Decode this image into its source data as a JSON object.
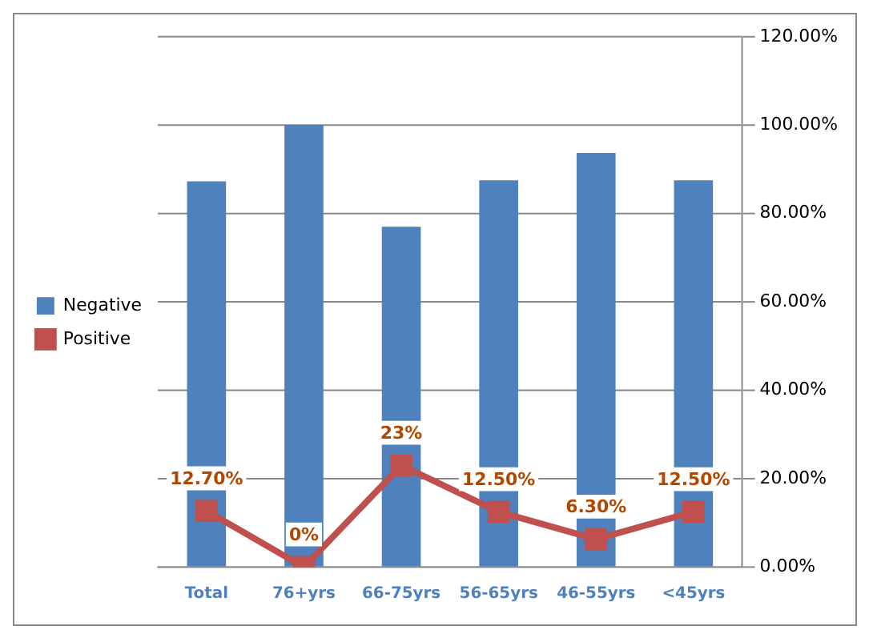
{
  "chart_data": {
    "type": "bar",
    "categories": [
      "Total",
      "76+yrs",
      "66-75yrs",
      "56-65yrs",
      "46-55yrs",
      "<45yrs"
    ],
    "series": [
      {
        "name": "Negative",
        "color": "#4f81bd",
        "values": [
          87.3,
          100,
          77,
          87.5,
          93.7,
          87.5
        ]
      },
      {
        "name": "Positive",
        "type": "line",
        "color": "#c0504d",
        "marker": "square",
        "values": [
          12.7,
          0,
          23,
          12.5,
          6.3,
          12.5
        ],
        "value_labels": [
          "12.70%",
          "0%",
          "23%",
          "12.50%",
          "6.30%",
          "12.50%"
        ]
      }
    ],
    "ylim": [
      0,
      120
    ],
    "yticks": [
      {
        "value": 0,
        "label": "0.00%"
      },
      {
        "value": 20,
        "label": "20.00%"
      },
      {
        "value": 40,
        "label": "40.00%"
      },
      {
        "value": 60,
        "label": "60.00%"
      },
      {
        "value": 80,
        "label": "80.00%"
      },
      {
        "value": 100,
        "label": "100.00%"
      },
      {
        "value": 120,
        "label": "120.00%"
      }
    ],
    "grid": "y",
    "legend": "left"
  }
}
